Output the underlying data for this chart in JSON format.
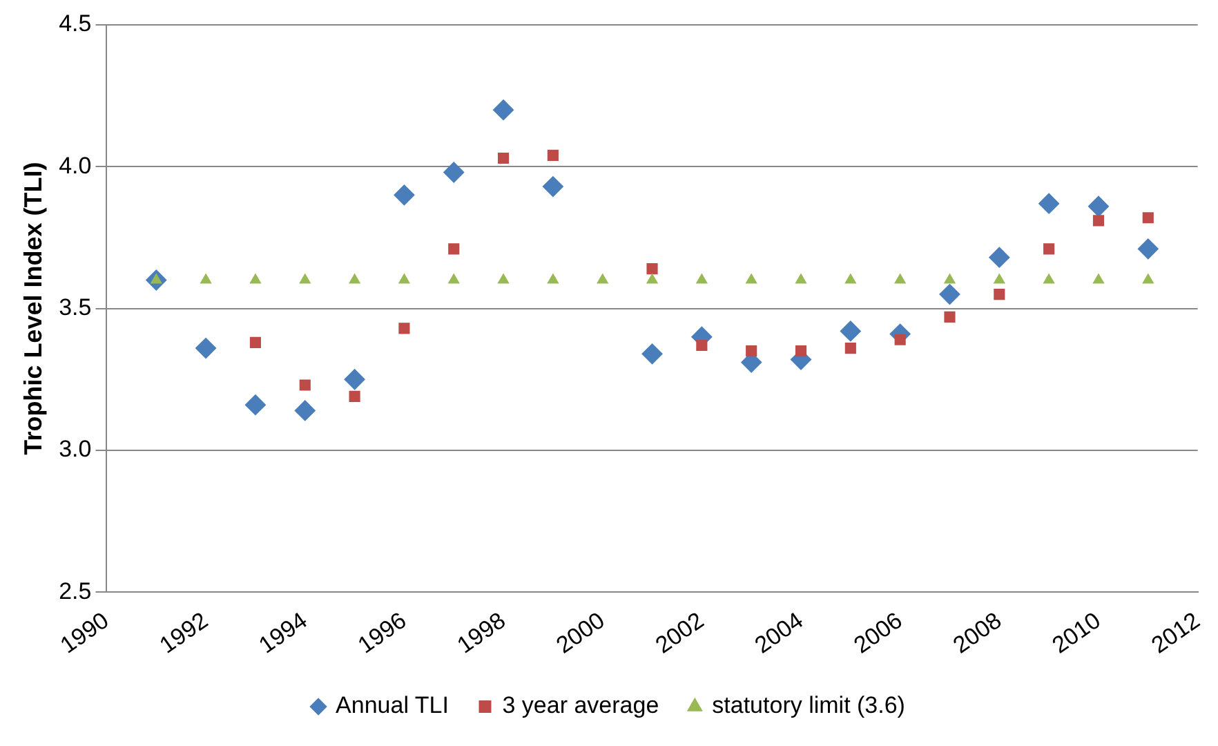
{
  "chart_data": {
    "type": "scatter",
    "ylabel": "Trophic Level Index (TLI)",
    "xlim": [
      1990,
      2012
    ],
    "xticks": [
      1990,
      1992,
      1994,
      1996,
      1998,
      2000,
      2002,
      2004,
      2006,
      2008,
      2010,
      2012
    ],
    "ylim": [
      2.5,
      4.5
    ],
    "yticks": [
      2.5,
      {
        "value": 3,
        "label": "3.0"
      },
      3.5,
      {
        "value": 4,
        "label": "4.0"
      },
      4.5
    ],
    "grid": "y",
    "legend": "bottom",
    "series": [
      {
        "name": "Annual TLI",
        "color": "#4a7ebb",
        "marker": "diamond",
        "x": [
          1991,
          1992,
          1993,
          1994,
          1995,
          1996,
          1997,
          1998,
          1999,
          2001,
          2002,
          2003,
          2004,
          2005,
          2006,
          2007,
          2008,
          2009,
          2010,
          2011
        ],
        "values": [
          3.6,
          3.36,
          3.16,
          3.14,
          3.25,
          3.9,
          3.98,
          4.2,
          3.93,
          3.34,
          3.4,
          3.31,
          3.32,
          3.42,
          3.41,
          3.55,
          3.68,
          3.87,
          3.86,
          3.71
        ]
      },
      {
        "name": "3 year average",
        "color": "#be4b48",
        "marker": "square",
        "x": [
          1993,
          1994,
          1995,
          1996,
          1997,
          1998,
          1999,
          2001,
          2002,
          2003,
          2004,
          2005,
          2006,
          2007,
          2008,
          2009,
          2010,
          2011
        ],
        "values": [
          3.38,
          3.23,
          3.19,
          3.43,
          3.71,
          4.03,
          4.04,
          3.64,
          3.37,
          3.35,
          3.35,
          3.36,
          3.39,
          3.47,
          3.55,
          3.71,
          3.81,
          3.82
        ]
      },
      {
        "name": "statutory limit (3.6)",
        "color": "#98b954",
        "marker": "triangle",
        "x": [
          1991,
          1992,
          1993,
          1994,
          1995,
          1996,
          1997,
          1998,
          1999,
          2000,
          2001,
          2002,
          2003,
          2004,
          2005,
          2006,
          2007,
          2008,
          2009,
          2010,
          2011
        ],
        "values": [
          3.6,
          3.6,
          3.6,
          3.6,
          3.6,
          3.6,
          3.6,
          3.6,
          3.6,
          3.6,
          3.6,
          3.6,
          3.6,
          3.6,
          3.6,
          3.6,
          3.6,
          3.6,
          3.6,
          3.6,
          3.6
        ]
      }
    ]
  }
}
